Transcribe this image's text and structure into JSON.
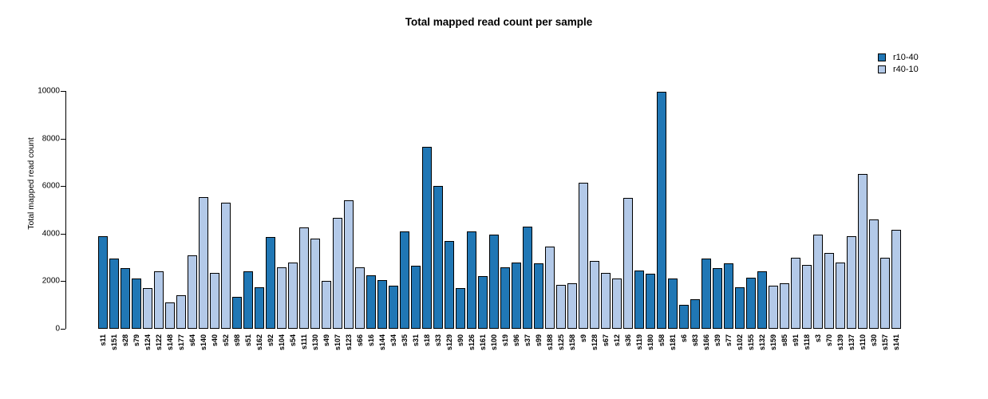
{
  "chart_data": {
    "type": "bar",
    "title": "Total mapped read count per sample",
    "xlabel": "",
    "ylabel": "Total mapped read count",
    "ylim": [
      0,
      10000
    ],
    "yticks": [
      0,
      2000,
      4000,
      6000,
      8000,
      10000
    ],
    "grid": false,
    "legend_position": "top-right",
    "legend": [
      {
        "label": "r10-40",
        "color": "#2077b5"
      },
      {
        "label": "r40-10",
        "color": "#b3c9e8"
      }
    ],
    "bars": [
      {
        "sample": "s11",
        "value": 3900,
        "group": "r10-40"
      },
      {
        "sample": "s151",
        "value": 2950,
        "group": "r10-40"
      },
      {
        "sample": "s28",
        "value": 2550,
        "group": "r10-40"
      },
      {
        "sample": "s79",
        "value": 2100,
        "group": "r10-40"
      },
      {
        "sample": "s124",
        "value": 1700,
        "group": "r40-10"
      },
      {
        "sample": "s122",
        "value": 2400,
        "group": "r40-10"
      },
      {
        "sample": "s148",
        "value": 1100,
        "group": "r40-10"
      },
      {
        "sample": "s177",
        "value": 1400,
        "group": "r40-10"
      },
      {
        "sample": "s64",
        "value": 3100,
        "group": "r40-10"
      },
      {
        "sample": "s140",
        "value": 5550,
        "group": "r40-10"
      },
      {
        "sample": "s40",
        "value": 2350,
        "group": "r40-10"
      },
      {
        "sample": "s52",
        "value": 5300,
        "group": "r40-10"
      },
      {
        "sample": "s98",
        "value": 1350,
        "group": "r10-40"
      },
      {
        "sample": "s51",
        "value": 2400,
        "group": "r10-40"
      },
      {
        "sample": "s162",
        "value": 1750,
        "group": "r10-40"
      },
      {
        "sample": "s92",
        "value": 3850,
        "group": "r10-40"
      },
      {
        "sample": "s104",
        "value": 2600,
        "group": "r40-10"
      },
      {
        "sample": "s54",
        "value": 2800,
        "group": "r40-10"
      },
      {
        "sample": "s111",
        "value": 4250,
        "group": "r40-10"
      },
      {
        "sample": "s130",
        "value": 3800,
        "group": "r40-10"
      },
      {
        "sample": "s49",
        "value": 2000,
        "group": "r40-10"
      },
      {
        "sample": "s107",
        "value": 4650,
        "group": "r40-10"
      },
      {
        "sample": "s123",
        "value": 5400,
        "group": "r40-10"
      },
      {
        "sample": "s66",
        "value": 2600,
        "group": "r40-10"
      },
      {
        "sample": "s16",
        "value": 2250,
        "group": "r10-40"
      },
      {
        "sample": "s144",
        "value": 2050,
        "group": "r10-40"
      },
      {
        "sample": "s34",
        "value": 1800,
        "group": "r10-40"
      },
      {
        "sample": "s35",
        "value": 4100,
        "group": "r10-40"
      },
      {
        "sample": "s31",
        "value": 2650,
        "group": "r10-40"
      },
      {
        "sample": "s18",
        "value": 7650,
        "group": "r10-40"
      },
      {
        "sample": "s33",
        "value": 6000,
        "group": "r10-40"
      },
      {
        "sample": "s129",
        "value": 3700,
        "group": "r10-40"
      },
      {
        "sample": "s90",
        "value": 1700,
        "group": "r10-40"
      },
      {
        "sample": "s126",
        "value": 4100,
        "group": "r10-40"
      },
      {
        "sample": "s161",
        "value": 2200,
        "group": "r10-40"
      },
      {
        "sample": "s100",
        "value": 3950,
        "group": "r10-40"
      },
      {
        "sample": "s19",
        "value": 2600,
        "group": "r10-40"
      },
      {
        "sample": "s96",
        "value": 2800,
        "group": "r10-40"
      },
      {
        "sample": "s37",
        "value": 4300,
        "group": "r10-40"
      },
      {
        "sample": "s99",
        "value": 2750,
        "group": "r10-40"
      },
      {
        "sample": "s188",
        "value": 3450,
        "group": "r40-10"
      },
      {
        "sample": "s125",
        "value": 1850,
        "group": "r40-10"
      },
      {
        "sample": "s158",
        "value": 1900,
        "group": "r40-10"
      },
      {
        "sample": "s9",
        "value": 6150,
        "group": "r40-10"
      },
      {
        "sample": "s128",
        "value": 2850,
        "group": "r40-10"
      },
      {
        "sample": "s67",
        "value": 2350,
        "group": "r40-10"
      },
      {
        "sample": "s12",
        "value": 2100,
        "group": "r40-10"
      },
      {
        "sample": "s36",
        "value": 5500,
        "group": "r40-10"
      },
      {
        "sample": "s119",
        "value": 2450,
        "group": "r10-40"
      },
      {
        "sample": "s180",
        "value": 2300,
        "group": "r10-40"
      },
      {
        "sample": "s58",
        "value": 9950,
        "group": "r10-40"
      },
      {
        "sample": "s181",
        "value": 2100,
        "group": "r10-40"
      },
      {
        "sample": "s6",
        "value": 1000,
        "group": "r10-40"
      },
      {
        "sample": "s83",
        "value": 1250,
        "group": "r10-40"
      },
      {
        "sample": "s166",
        "value": 2950,
        "group": "r10-40"
      },
      {
        "sample": "s39",
        "value": 2550,
        "group": "r10-40"
      },
      {
        "sample": "s77",
        "value": 2750,
        "group": "r10-40"
      },
      {
        "sample": "s102",
        "value": 1750,
        "group": "r10-40"
      },
      {
        "sample": "s155",
        "value": 2150,
        "group": "r10-40"
      },
      {
        "sample": "s132",
        "value": 2400,
        "group": "r10-40"
      },
      {
        "sample": "s159",
        "value": 1800,
        "group": "r40-10"
      },
      {
        "sample": "s85",
        "value": 1900,
        "group": "r40-10"
      },
      {
        "sample": "s91",
        "value": 3000,
        "group": "r40-10"
      },
      {
        "sample": "s118",
        "value": 2700,
        "group": "r40-10"
      },
      {
        "sample": "s3",
        "value": 3950,
        "group": "r40-10"
      },
      {
        "sample": "s70",
        "value": 3200,
        "group": "r40-10"
      },
      {
        "sample": "s139",
        "value": 2800,
        "group": "r40-10"
      },
      {
        "sample": "s137",
        "value": 3900,
        "group": "r40-10"
      },
      {
        "sample": "s110",
        "value": 6500,
        "group": "r40-10"
      },
      {
        "sample": "s30",
        "value": 4600,
        "group": "r40-10"
      },
      {
        "sample": "s157",
        "value": 3000,
        "group": "r40-10"
      },
      {
        "sample": "s141",
        "value": 4150,
        "group": "r40-10"
      }
    ]
  }
}
